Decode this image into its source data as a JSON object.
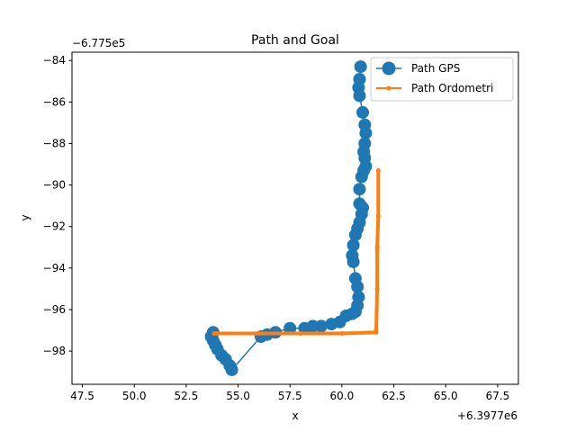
{
  "chart_data": {
    "type": "line",
    "title": "Path and Goal",
    "xlabel": "x",
    "ylabel": "y",
    "x_offset_label": "+6.3977e6",
    "y_offset_label": "−6.775e5",
    "xlim": [
      47.0,
      68.5
    ],
    "ylim": [
      -99.6,
      -83.6
    ],
    "x_ticks": [
      47.5,
      50.0,
      52.5,
      55.0,
      57.5,
      60.0,
      62.5,
      65.0,
      67.5
    ],
    "x_tick_labels": [
      "47.5",
      "50.0",
      "52.5",
      "55.0",
      "57.5",
      "60.0",
      "62.5",
      "65.0",
      "67.5"
    ],
    "y_ticks": [
      -98,
      -96,
      -94,
      -92,
      -90,
      -88,
      -86,
      -84
    ],
    "y_tick_labels": [
      "−98",
      "−96",
      "−94",
      "−92",
      "−90",
      "−88",
      "−86",
      "−84"
    ],
    "grid": false,
    "legend_position": "top-right",
    "series": [
      {
        "name": "Path GPS",
        "color": "#1f77b4",
        "marker": "circle-large",
        "x": [
          60.9,
          60.85,
          60.8,
          60.85,
          61.0,
          61.1,
          61.15,
          61.1,
          61.05,
          61.1,
          61.15,
          61.05,
          60.95,
          60.85,
          60.85,
          61.0,
          60.95,
          60.85,
          60.75,
          60.65,
          60.55,
          60.5,
          60.55,
          60.65,
          60.75,
          60.8,
          60.75,
          60.65,
          60.5,
          60.2,
          59.9,
          59.5,
          59.0,
          58.6,
          58.2,
          57.5,
          56.8,
          56.4,
          56.1,
          54.7,
          54.6,
          54.4,
          54.2,
          54.0,
          53.9,
          53.8,
          53.7,
          53.8
        ],
        "y": [
          -84.3,
          -84.9,
          -85.3,
          -85.7,
          -86.5,
          -87.1,
          -87.5,
          -88.0,
          -88.4,
          -88.7,
          -89.1,
          -89.3,
          -89.6,
          -90.2,
          -90.9,
          -91.1,
          -91.4,
          -91.8,
          -92.1,
          -92.4,
          -92.9,
          -93.4,
          -93.7,
          -94.5,
          -94.9,
          -95.4,
          -95.8,
          -96.1,
          -96.2,
          -96.3,
          -96.6,
          -96.7,
          -96.8,
          -96.8,
          -96.9,
          -96.9,
          -97.1,
          -97.2,
          -97.3,
          -98.9,
          -98.7,
          -98.4,
          -98.2,
          -97.9,
          -97.7,
          -97.5,
          -97.3,
          -97.1
        ]
      },
      {
        "name": "Path Ordometri",
        "color": "#ff7f0e",
        "marker": "dot-small",
        "x": [
          61.75,
          61.75,
          61.7,
          61.7,
          61.7,
          61.65,
          61.65,
          60.0,
          58.0,
          56.0,
          54.0,
          53.85
        ],
        "y": [
          -89.3,
          -91.5,
          -93.0,
          -93.1,
          -95.0,
          -97.0,
          -97.1,
          -97.15,
          -97.15,
          -97.15,
          -97.15,
          -97.15
        ]
      }
    ]
  }
}
